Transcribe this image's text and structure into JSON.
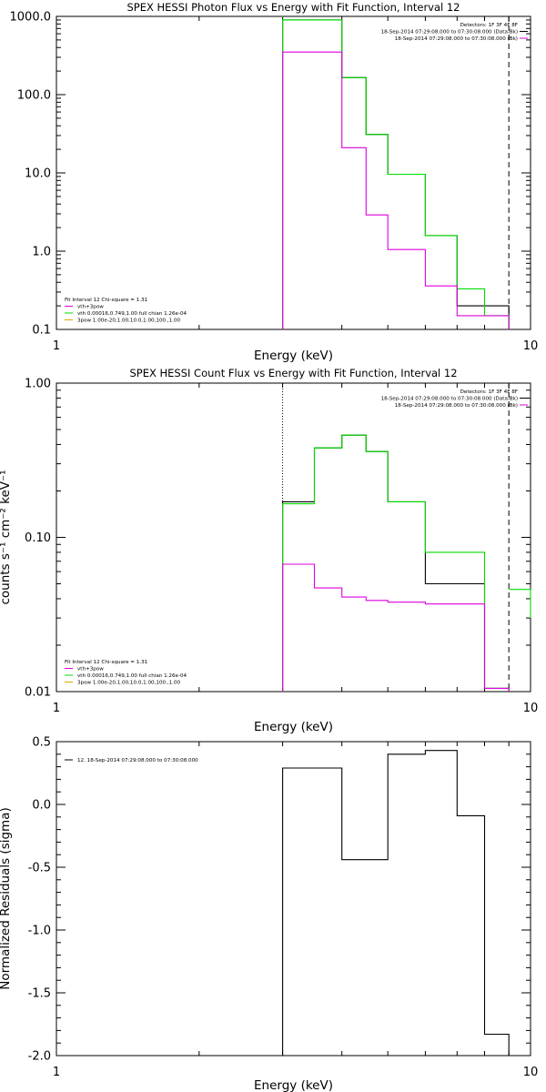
{
  "chart_data": [
    {
      "type": "line",
      "title": "SPEX HESSI Photon Flux vs Energy with Fit Function, Interval 12",
      "xlabel": "Energy (keV)",
      "ylabel": "",
      "xscale": "log",
      "yscale": "log",
      "xlim": [
        1,
        10
      ],
      "ylim": [
        0.1,
        1000
      ],
      "xticks": [
        {
          "v": 1,
          "label": "1"
        },
        {
          "v": 10,
          "label": "10"
        }
      ],
      "yticks": [
        {
          "v": 1000,
          "label": "1000.0"
        },
        {
          "v": 100,
          "label": "100.0"
        },
        {
          "v": 10,
          "label": "10.0"
        },
        {
          "v": 1,
          "label": "1.0"
        },
        {
          "v": 0.1,
          "label": "0.1"
        }
      ],
      "bin_edges": [
        3,
        3.5,
        4,
        4.5,
        5,
        6,
        7,
        8,
        9
      ],
      "series": [
        {
          "color": "#000000",
          "values": [
            900,
            900,
            165,
            31,
            9.6,
            1.58,
            0.2,
            0.2
          ]
        },
        {
          "color": "#00dd00",
          "values": [
            900,
            900,
            165,
            31,
            9.6,
            1.58,
            0.33,
            0.15
          ]
        },
        {
          "color": "#dd00dd",
          "values": [
            350,
            350,
            21,
            2.9,
            1.05,
            0.36,
            0.15,
            0.15
          ]
        }
      ],
      "vlines": [
        {
          "x": 3,
          "style": "dotted",
          "color": "#000000"
        },
        {
          "x": 3,
          "style": "dotted",
          "color": "#00dd00"
        },
        {
          "x": 9,
          "style": "dashed",
          "color": "#000000"
        }
      ],
      "legend_right": {
        "position": "top-right",
        "lines": [
          {
            "text": "Detectors: 1F 3F 4F 8F",
            "color": ""
          },
          {
            "text": "18-Sep-2014 07:29:08.000 to 07:30:08.000 (Data-Bk)",
            "color": "#000000"
          },
          {
            "text": "18-Sep-2014 07:29:08.000 to 07:30:08.000 (Bk)",
            "color": "#dd00dd"
          }
        ]
      },
      "legend_left": {
        "position": "bottom-left",
        "header": "Fit Interval 12   Chi-square = 1.31",
        "items": [
          {
            "text": "vth+3pow",
            "color": "#dd00dd"
          },
          {
            "text": "vth 0.00016,0.749,1.00  full chian 1.26e-04",
            "color": "#00dd00"
          },
          {
            "text": "3pow 1.00e-20,1.00,10.0,1.00,100.,1.00",
            "color": "#ddaa00"
          }
        ]
      }
    },
    {
      "type": "line",
      "title": "SPEX HESSI Count Flux vs Energy with Fit Function, Interval 12",
      "xlabel": "Energy (keV)",
      "ylabel": "counts s⁻¹ cm⁻² keV⁻¹",
      "xscale": "log",
      "yscale": "log",
      "xlim": [
        1,
        10
      ],
      "ylim": [
        0.01,
        1.0
      ],
      "xticks": [
        {
          "v": 1,
          "label": "1"
        },
        {
          "v": 10,
          "label": "10"
        }
      ],
      "yticks": [
        {
          "v": 1.0,
          "label": "1.00"
        },
        {
          "v": 0.1,
          "label": "0.10"
        },
        {
          "v": 0.01,
          "label": "0.01"
        }
      ],
      "bin_edges": [
        3,
        3.5,
        4,
        4.5,
        5,
        6,
        7,
        8,
        9
      ],
      "series": [
        {
          "color": "#000000",
          "values": [
            0.17,
            0.38,
            0.46,
            0.36,
            0.17,
            0.05,
            0.05,
            0.0105
          ]
        },
        {
          "color": "#00dd00",
          "values": [
            0.165,
            0.38,
            0.46,
            0.36,
            0.17,
            0.08,
            0.08,
            0.0105
          ]
        },
        {
          "color": "#dd00dd",
          "values": [
            0.067,
            0.047,
            0.041,
            0.039,
            0.038,
            0.037,
            0.037,
            0.0105
          ]
        }
      ],
      "extra_segments": [
        {
          "color": "#00dd00",
          "x1": 9,
          "x2": 10,
          "y": 0.046
        },
        {
          "color": "#00dd00",
          "x1": 10,
          "x2": 10,
          "y1": 0.046,
          "y2": 0.03
        }
      ],
      "vlines": [
        {
          "x": 3,
          "style": "dotted",
          "color": "#000000"
        },
        {
          "x": 9,
          "style": "dashed",
          "color": "#000000"
        }
      ],
      "legend_right": {
        "position": "top-right",
        "lines": [
          {
            "text": "Detectors: 1F 3F 4F 8F",
            "color": ""
          },
          {
            "text": "18-Sep-2014 07:29:08.000 to 07:30:08.000 (Data-Bk)",
            "color": "#000000"
          },
          {
            "text": "18-Sep-2014 07:29:08.000 to 07:30:08.000 (Bk)",
            "color": "#dd00dd"
          }
        ]
      },
      "legend_left": {
        "position": "bottom-left",
        "header": "Fit Interval 12   Chi-square = 1.31",
        "items": [
          {
            "text": "vth+3pow",
            "color": "#dd00dd"
          },
          {
            "text": "vth 0.00016,0.749,1.00  full chian 1.26e-04",
            "color": "#00dd00"
          },
          {
            "text": "3pow 1.00e-20,1.00,10.0,1.00,100.,1.00",
            "color": "#ddaa00"
          }
        ]
      }
    },
    {
      "type": "line",
      "title": "",
      "xlabel": "Energy (keV)",
      "ylabel": "Normalized Residuals (sigma)",
      "xscale": "log",
      "yscale": "linear",
      "xlim": [
        1,
        10
      ],
      "ylim": [
        -2.0,
        0.5
      ],
      "xticks": [
        {
          "v": 1,
          "label": "1"
        },
        {
          "v": 10,
          "label": "10"
        }
      ],
      "yticks": [
        {
          "v": 0.5,
          "label": "0.5"
        },
        {
          "v": 0.0,
          "label": "0.0"
        },
        {
          "v": -0.5,
          "label": "-0.5"
        },
        {
          "v": -1.0,
          "label": "-1.0"
        },
        {
          "v": -1.5,
          "label": "-1.5"
        },
        {
          "v": -2.0,
          "label": "-2.0"
        }
      ],
      "bin_edges": [
        3,
        4,
        5,
        6,
        7,
        8,
        9
      ],
      "series": [
        {
          "color": "#000000",
          "values": [
            0.29,
            -0.44,
            0.4,
            0.43,
            -0.09,
            -1.83
          ]
        }
      ],
      "legend_left": {
        "position": "top-left",
        "header": "",
        "items": [
          {
            "text": "12. 18-Sep-2014 07:29:08.000 to 07:30:08.000",
            "color": "#000000"
          }
        ]
      }
    }
  ]
}
